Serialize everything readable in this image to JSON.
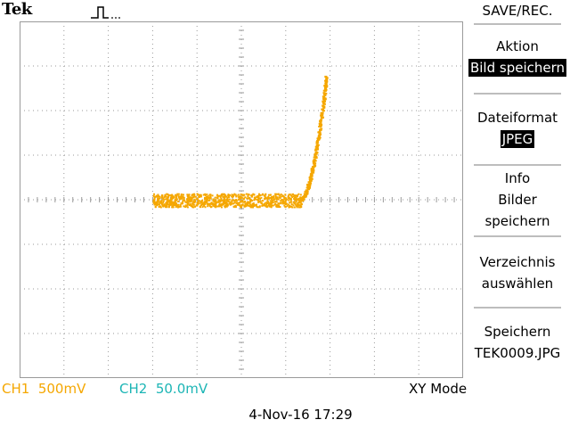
{
  "brand": "Tek",
  "trigger_icon": "trigger-pulse-icon",
  "colors": {
    "ch1": "#f5a700",
    "ch2": "#1cb5b5",
    "grid": "#9a9a9a",
    "trace": "#f5a700"
  },
  "menu": {
    "title": "SAVE/REC.",
    "items": [
      {
        "lines": [
          "Aktion"
        ],
        "value": "Bild speichern"
      },
      {
        "lines": [
          "Dateiformat"
        ],
        "value": "JPEG"
      },
      {
        "lines": [
          "Info",
          "Bilder",
          "speichern"
        ]
      },
      {
        "lines": [
          "Verzeichnis",
          "auswählen"
        ]
      },
      {
        "lines": [
          "Speichern",
          "TEK0009.JPG"
        ]
      }
    ]
  },
  "status": {
    "ch1_label": "CH1",
    "ch1_scale": "500mV",
    "ch2_label": "CH2",
    "ch2_scale": "50.0mV",
    "mode": "XY Mode"
  },
  "datetime": "4-Nov-16 17:29",
  "chart_data": {
    "type": "scatter",
    "mode": "XY",
    "divisions": {
      "x": 10,
      "y": 8
    },
    "x_range_div": [
      -5,
      5
    ],
    "y_range_div": [
      -4,
      4
    ],
    "grid": true,
    "trace": {
      "flat_x_div": [
        -2.0,
        1.35
      ],
      "flat_y_div": 0.0,
      "flat_noise_div": 0.15,
      "rise": [
        [
          1.35,
          0.0
        ],
        [
          1.45,
          0.15
        ],
        [
          1.55,
          0.45
        ],
        [
          1.65,
          0.9
        ],
        [
          1.75,
          1.5
        ],
        [
          1.85,
          2.2
        ],
        [
          1.92,
          2.8
        ]
      ]
    }
  }
}
